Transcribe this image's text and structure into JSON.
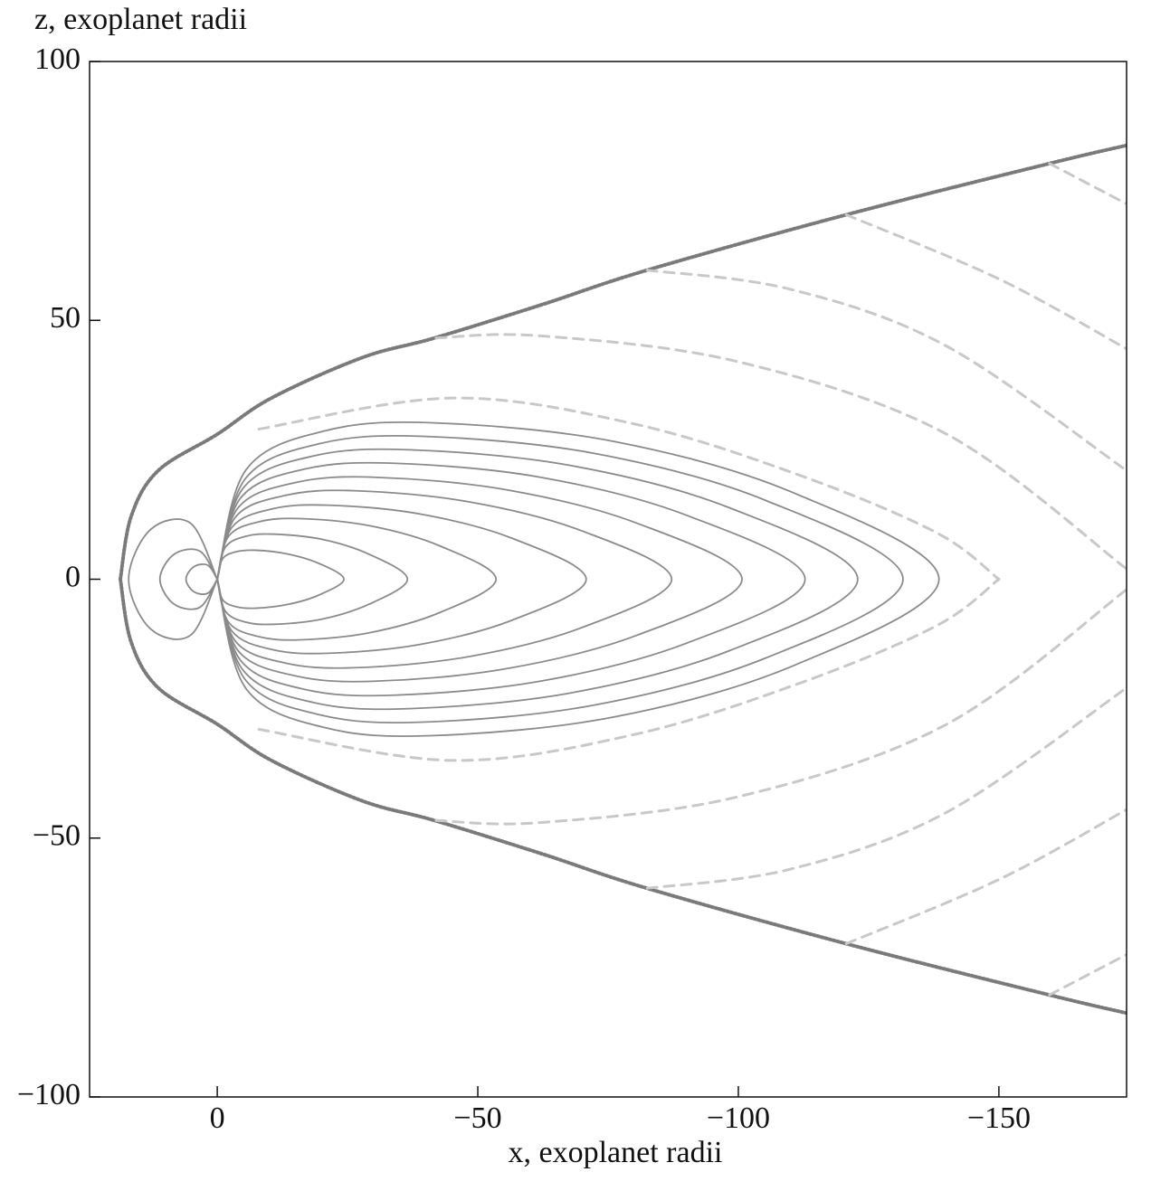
{
  "chart_data": {
    "type": "line",
    "x_label": "x, exoplanet radii",
    "y_label": "z, exoplanet radii",
    "xlim": [
      24.5,
      -174.5
    ],
    "ylim": [
      -100,
      100
    ],
    "xticks": [
      0,
      {
        "value": -50,
        "label": "−50"
      },
      {
        "value": -100,
        "label": "−100"
      },
      {
        "value": -150,
        "label": "−150"
      }
    ],
    "yticks": [
      {
        "value": -100,
        "label": "−100"
      },
      {
        "value": -50,
        "label": "−50"
      },
      0,
      50,
      100
    ],
    "series": [
      {
        "style": "dotted",
        "color": "#7a7a7a",
        "x": [
          18.6,
          16.5,
          11.3,
          0,
          -10.4,
          -27.8,
          -41.7,
          -62.5,
          -82.5,
          -120.7,
          -159.7,
          -174.5
        ],
        "y": [
          0,
          12.2,
          21,
          28,
          35,
          42.8,
          46.6,
          53.1,
          59.7,
          70.4,
          80.3,
          83.8
        ]
      },
      {
        "style": "dotted",
        "color": "#7a7a7a",
        "x": [
          18.6,
          16.5,
          11.3,
          0,
          -10.4,
          -27.8,
          -41.7,
          -62.5,
          -82.5,
          -120.7,
          -159.7,
          -174.5
        ],
        "y": [
          0,
          -12.2,
          -21,
          -28,
          -35,
          -42.8,
          -46.6,
          -53.1,
          -59.7,
          -70.4,
          -80.3,
          -83.8
        ]
      },
      {
        "style": "dashed",
        "color": "#c8c8c8",
        "x": [
          -8,
          -45,
          -80,
          -112,
          -138,
          -150
        ],
        "y": [
          29,
          35,
          30,
          20,
          9,
          0
        ]
      },
      {
        "style": "dashed",
        "color": "#c8c8c8",
        "x": [
          -8,
          -45,
          -80,
          -112,
          -138,
          -150
        ],
        "y": [
          -29,
          -35,
          -30,
          -20,
          -9,
          0
        ]
      },
      {
        "style": "dashed",
        "color": "#c8c8c8",
        "x": [
          -42,
          -62,
          -100,
          -140,
          -174.5
        ],
        "y": [
          46.6,
          47,
          42,
          28,
          2
        ]
      },
      {
        "style": "dashed",
        "color": "#c8c8c8",
        "x": [
          -42,
          -62,
          -100,
          -140,
          -174.5
        ],
        "y": [
          -46.6,
          -47,
          -42,
          -28,
          -2
        ]
      },
      {
        "style": "dashed",
        "color": "#c8c8c8",
        "x": [
          -82.5,
          -110,
          -140,
          -174.5
        ],
        "y": [
          59.7,
          56,
          45,
          21
        ]
      },
      {
        "style": "dashed",
        "color": "#c8c8c8",
        "x": [
          -82.5,
          -110,
          -140,
          -174.5
        ],
        "y": [
          -59.7,
          -56,
          -45,
          -21
        ]
      },
      {
        "style": "dashed",
        "color": "#c8c8c8",
        "x": [
          -120.7,
          -150,
          -174.5
        ],
        "y": [
          70.4,
          58,
          44.5
        ]
      },
      {
        "style": "dashed",
        "color": "#c8c8c8",
        "x": [
          -120.7,
          -150,
          -174.5
        ],
        "y": [
          -70.4,
          -58,
          -44.5
        ]
      },
      {
        "style": "dashed",
        "color": "#c8c8c8",
        "x": [
          -159.7,
          -174.5
        ],
        "y": [
          80.3,
          72.5
        ]
      },
      {
        "style": "dashed",
        "color": "#c8c8c8",
        "x": [
          -159.7,
          -174.5
        ],
        "y": [
          -80.3,
          -72.5
        ]
      },
      {
        "style": "solid",
        "color": "#8a8a8a",
        "x": [
          0,
          1.8,
          4.5,
          6,
          4.5,
          1.8,
          0
        ],
        "y": [
          0,
          2.7,
          2.4,
          0,
          -2.4,
          -2.7,
          0
        ]
      },
      {
        "style": "solid",
        "color": "#8a8a8a",
        "x": [
          0,
          3.3,
          8.3,
          11,
          8.3,
          3.3,
          0
        ],
        "y": [
          0,
          5.4,
          4.8,
          0,
          -4.8,
          -5.4,
          0
        ]
      },
      {
        "style": "solid",
        "color": "#8a8a8a",
        "x": [
          0,
          5.1,
          12.8,
          17,
          12.8,
          5.1,
          0
        ],
        "y": [
          0,
          10.8,
          9.6,
          0,
          -9.6,
          -10.8,
          0
        ]
      },
      {
        "style": "solid",
        "color": "#8a8a8a",
        "x": [
          0,
          -1.0,
          -3.6,
          -7.3,
          -13.4,
          -19.4,
          -24.3,
          -19.4,
          -13.4,
          -7.3,
          -3.6,
          -1.0,
          0
        ],
        "y": [
          0,
          3.9,
          5.3,
          5.6,
          4.9,
          3.1,
          0,
          -3.1,
          -4.9,
          -5.6,
          -5.3,
          -3.9,
          0
        ]
      },
      {
        "style": "solid",
        "color": "#8a8a8a",
        "x": [
          0,
          -1.5,
          -5.5,
          -11,
          -20.1,
          -29.2,
          -36.5,
          -29.2,
          -20.1,
          -11,
          -5.5,
          -1.5,
          0
        ],
        "y": [
          0,
          6.1,
          8.3,
          8.7,
          7.7,
          4.8,
          0,
          -4.8,
          -7.7,
          -8.7,
          -8.3,
          -6.1,
          0
        ]
      },
      {
        "style": "solid",
        "color": "#8a8a8a",
        "x": [
          0,
          -2.1,
          -8,
          -16.1,
          -29.4,
          -42.8,
          -53.5,
          -42.8,
          -29.4,
          -16.1,
          -8,
          -2.1,
          0
        ],
        "y": [
          0,
          8.2,
          11.1,
          11.7,
          10.3,
          6.4,
          0,
          -6.4,
          -10.3,
          -11.7,
          -11.1,
          -8.2,
          0
        ]
      },
      {
        "style": "solid",
        "color": "#8a8a8a",
        "x": [
          0,
          -2.8,
          -10.6,
          -21.2,
          -38.9,
          -56.6,
          -70.8,
          -56.6,
          -38.9,
          -21.2,
          -10.6,
          -2.8,
          0
        ],
        "y": [
          0,
          10,
          13.6,
          14.3,
          12.6,
          7.9,
          0,
          -7.9,
          -12.6,
          -14.3,
          -13.6,
          -10,
          0
        ]
      },
      {
        "style": "solid",
        "color": "#8a8a8a",
        "x": [
          0,
          -3.5,
          -13.1,
          -26.2,
          -48,
          -69.8,
          -87.2,
          -69.8,
          -48,
          -26.2,
          -13.1,
          -3.5,
          0
        ],
        "y": [
          0,
          12,
          16.2,
          17.1,
          15,
          9.4,
          0,
          -9.4,
          -15,
          -17.1,
          -16.2,
          -12,
          0
        ]
      },
      {
        "style": "solid",
        "color": "#8a8a8a",
        "x": [
          0,
          -4,
          -15.1,
          -30.2,
          -55.4,
          -80.6,
          -100.7,
          -80.6,
          -55.4,
          -30.2,
          -15.1,
          -4,
          0
        ],
        "y": [
          0,
          13.8,
          18.7,
          19.7,
          17.3,
          10.8,
          0,
          -10.8,
          -17.3,
          -19.7,
          -18.7,
          -13.8,
          0
        ]
      },
      {
        "style": "solid",
        "color": "#8a8a8a",
        "x": [
          0,
          -4.5,
          -16.9,
          -33.8,
          -62,
          -90.2,
          -112.8,
          -90.2,
          -62,
          -33.8,
          -16.9,
          -4.5,
          0
        ],
        "y": [
          0,
          15.7,
          21.3,
          22.4,
          19.7,
          12.3,
          0,
          -12.3,
          -19.7,
          -22.4,
          -21.3,
          -15.7,
          0
        ]
      },
      {
        "style": "solid",
        "color": "#8a8a8a",
        "x": [
          0,
          -4.9,
          -18.4,
          -36.9,
          -67.6,
          -98.3,
          -122.9,
          -98.3,
          -67.6,
          -36.9,
          -18.4,
          -4.9,
          0
        ],
        "y": [
          0,
          17.5,
          23.8,
          25,
          22,
          13.8,
          0,
          -13.8,
          -22,
          -25,
          -23.8,
          -17.5,
          0
        ]
      },
      {
        "style": "solid",
        "color": "#8a8a8a",
        "x": [
          0,
          -5.3,
          -19.7,
          -39.5,
          -72.4,
          -105.3,
          -131.6,
          -105.3,
          -72.4,
          -39.5,
          -19.7,
          -5.3,
          0
        ],
        "y": [
          0,
          19.3,
          26.2,
          27.6,
          24.3,
          15.2,
          0,
          -15.2,
          -24.3,
          -27.6,
          -26.2,
          -19.3,
          0
        ]
      },
      {
        "style": "solid",
        "color": "#8a8a8a",
        "x": [
          0,
          -5.5,
          -20.8,
          -41.6,
          -76.2,
          -110.8,
          -138.5,
          -110.8,
          -76.2,
          -41.6,
          -20.8,
          -5.5,
          0
        ],
        "y": [
          0,
          21.1,
          28.7,
          30.2,
          26.6,
          16.6,
          0,
          -16.6,
          -26.6,
          -30.2,
          -28.7,
          -21.1,
          0
        ]
      }
    ]
  }
}
